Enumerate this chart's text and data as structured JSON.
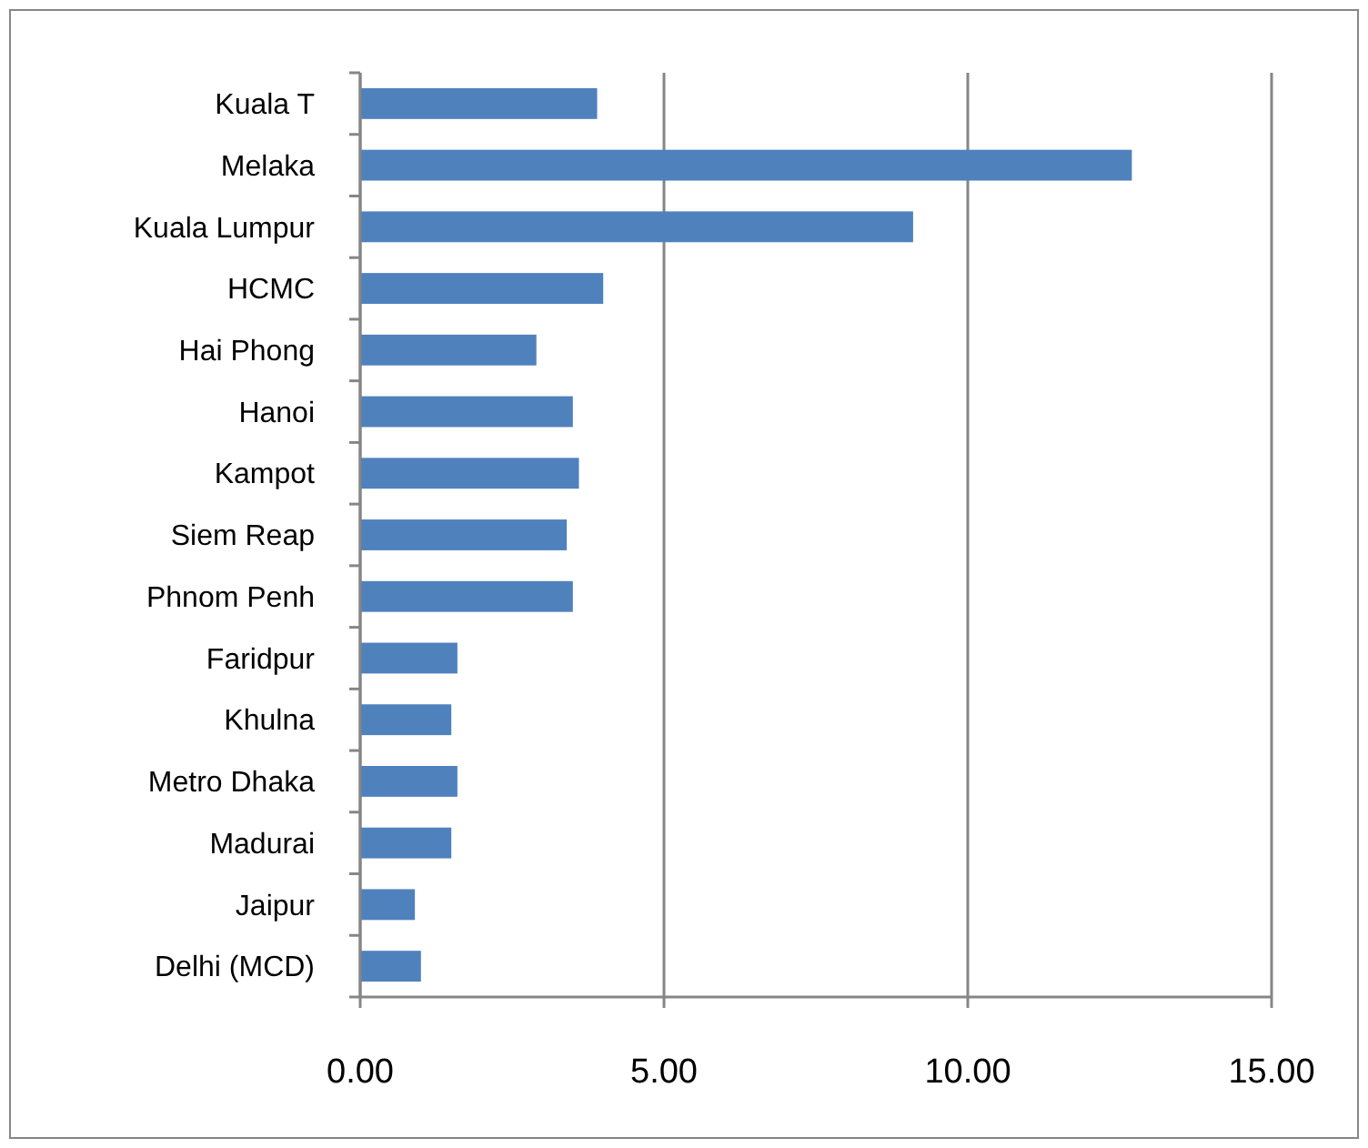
{
  "chart_data": {
    "type": "bar",
    "orientation": "horizontal",
    "categories": [
      "Kuala T",
      "Melaka",
      "Kuala Lumpur",
      "HCMC",
      "Hai Phong",
      "Hanoi",
      "Kampot",
      "Siem Reap",
      "Phnom Penh",
      "Faridpur",
      "Khulna",
      "Metro Dhaka",
      "Madurai",
      "Jaipur",
      "Delhi (MCD)"
    ],
    "values": [
      3.9,
      12.7,
      9.1,
      4.0,
      2.9,
      3.5,
      3.6,
      3.4,
      3.5,
      1.6,
      1.5,
      1.6,
      1.5,
      0.9,
      1.0
    ],
    "color": "#4f81bd",
    "xlim": [
      0,
      15
    ],
    "xticks": [
      {
        "value": 0,
        "label": "0.00"
      },
      {
        "value": 5,
        "label": "5.00"
      },
      {
        "value": 10,
        "label": "10.00"
      },
      {
        "value": 15,
        "label": "15.00"
      }
    ],
    "grid": "x"
  }
}
